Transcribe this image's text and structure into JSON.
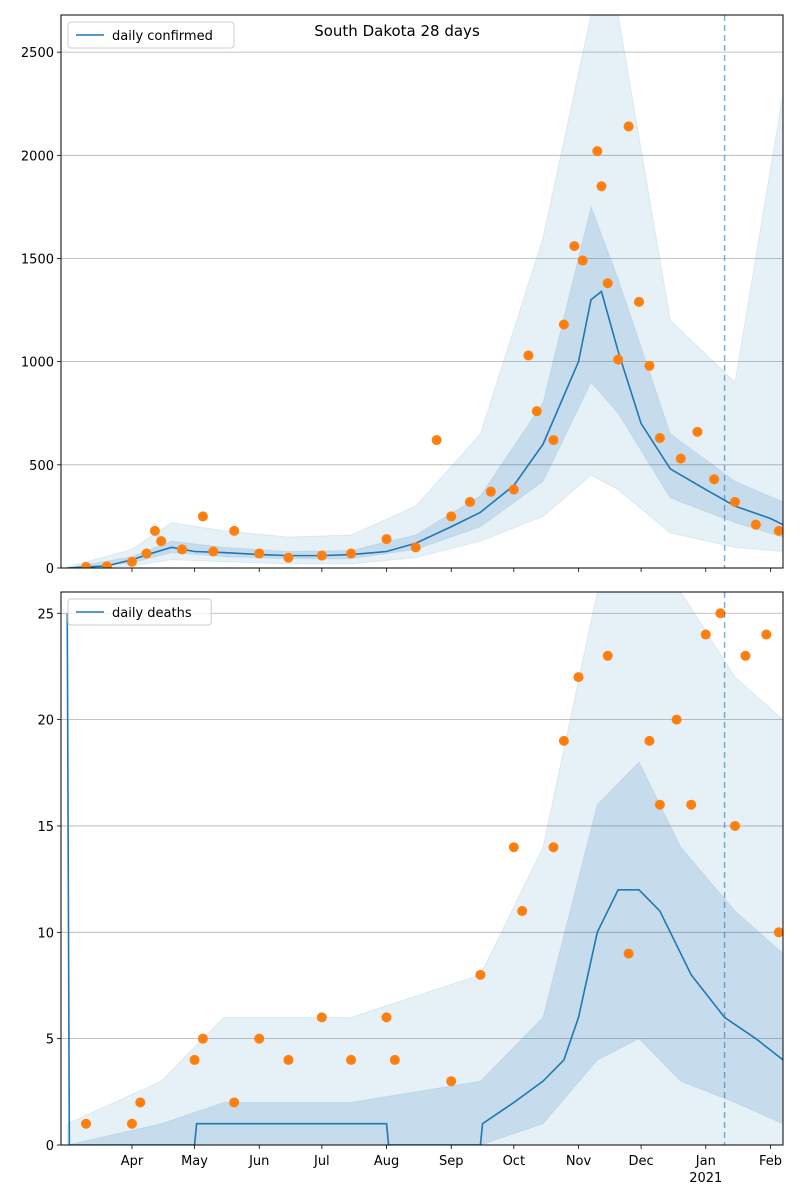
{
  "chart_data": [
    {
      "type": "line",
      "title": "South Dakota 28 days",
      "legend": {
        "label": "daily confirmed",
        "placement": "top-left"
      },
      "ylim": [
        0,
        2680
      ],
      "yticks": [
        0,
        500,
        1000,
        1500,
        2000,
        2500
      ],
      "grid": "y",
      "colors": {
        "line": "#1f77b4",
        "points": "#ff7f0e",
        "band": "#1f77b4"
      },
      "median": [
        {
          "x": "2020-03-01",
          "y": 0
        },
        {
          "x": "2020-03-20",
          "y": 10
        },
        {
          "x": "2020-04-01",
          "y": 40
        },
        {
          "x": "2020-04-10",
          "y": 70
        },
        {
          "x": "2020-04-20",
          "y": 100
        },
        {
          "x": "2020-05-01",
          "y": 80
        },
        {
          "x": "2020-05-15",
          "y": 75
        },
        {
          "x": "2020-06-01",
          "y": 65
        },
        {
          "x": "2020-06-15",
          "y": 60
        },
        {
          "x": "2020-07-01",
          "y": 60
        },
        {
          "x": "2020-07-15",
          "y": 65
        },
        {
          "x": "2020-08-01",
          "y": 80
        },
        {
          "x": "2020-08-15",
          "y": 120
        },
        {
          "x": "2020-09-01",
          "y": 200
        },
        {
          "x": "2020-09-15",
          "y": 270
        },
        {
          "x": "2020-10-01",
          "y": 400
        },
        {
          "x": "2020-10-15",
          "y": 600
        },
        {
          "x": "2020-11-01",
          "y": 1000
        },
        {
          "x": "2020-11-07",
          "y": 1300
        },
        {
          "x": "2020-11-12",
          "y": 1340
        },
        {
          "x": "2020-11-20",
          "y": 1050
        },
        {
          "x": "2020-12-01",
          "y": 700
        },
        {
          "x": "2020-12-15",
          "y": 480
        },
        {
          "x": "2021-01-01",
          "y": 380
        },
        {
          "x": "2021-01-15",
          "y": 300
        },
        {
          "x": "2021-02-01",
          "y": 240
        },
        {
          "x": "2021-02-07",
          "y": 210
        }
      ],
      "band_inner": [
        {
          "x": "2020-03-01",
          "lo": 0,
          "hi": 0
        },
        {
          "x": "2020-04-01",
          "lo": 25,
          "hi": 55
        },
        {
          "x": "2020-04-20",
          "lo": 75,
          "hi": 130
        },
        {
          "x": "2020-05-15",
          "lo": 55,
          "hi": 100
        },
        {
          "x": "2020-06-15",
          "lo": 45,
          "hi": 80
        },
        {
          "x": "2020-07-15",
          "lo": 45,
          "hi": 85
        },
        {
          "x": "2020-08-15",
          "lo": 90,
          "hi": 160
        },
        {
          "x": "2020-09-15",
          "lo": 200,
          "hi": 350
        },
        {
          "x": "2020-10-15",
          "lo": 420,
          "hi": 800
        },
        {
          "x": "2020-11-07",
          "lo": 900,
          "hi": 1750
        },
        {
          "x": "2020-11-20",
          "lo": 750,
          "hi": 1400
        },
        {
          "x": "2020-12-15",
          "lo": 340,
          "hi": 650
        },
        {
          "x": "2021-01-15",
          "lo": 220,
          "hi": 420
        },
        {
          "x": "2021-02-07",
          "lo": 150,
          "hi": 320
        }
      ],
      "band_outer": [
        {
          "x": "2020-03-01",
          "lo": 0,
          "hi": 5
        },
        {
          "x": "2020-04-01",
          "lo": 10,
          "hi": 90
        },
        {
          "x": "2020-04-20",
          "lo": 40,
          "hi": 220
        },
        {
          "x": "2020-05-15",
          "lo": 30,
          "hi": 180
        },
        {
          "x": "2020-06-15",
          "lo": 20,
          "hi": 150
        },
        {
          "x": "2020-07-15",
          "lo": 20,
          "hi": 160
        },
        {
          "x": "2020-08-15",
          "lo": 50,
          "hi": 300
        },
        {
          "x": "2020-09-15",
          "lo": 130,
          "hi": 650
        },
        {
          "x": "2020-10-15",
          "lo": 250,
          "hi": 1600
        },
        {
          "x": "2020-11-07",
          "lo": 450,
          "hi": 2680
        },
        {
          "x": "2020-11-20",
          "lo": 380,
          "hi": 2680
        },
        {
          "x": "2020-12-15",
          "lo": 170,
          "hi": 1200
        },
        {
          "x": "2021-01-15",
          "lo": 100,
          "hi": 900
        },
        {
          "x": "2021-02-07",
          "lo": 80,
          "hi": 2300
        }
      ],
      "observed": [
        {
          "x": "2020-03-10",
          "y": 5
        },
        {
          "x": "2020-03-20",
          "y": 8
        },
        {
          "x": "2020-04-01",
          "y": 30
        },
        {
          "x": "2020-04-08",
          "y": 70
        },
        {
          "x": "2020-04-12",
          "y": 180
        },
        {
          "x": "2020-04-15",
          "y": 130
        },
        {
          "x": "2020-04-25",
          "y": 90
        },
        {
          "x": "2020-05-05",
          "y": 250
        },
        {
          "x": "2020-05-10",
          "y": 80
        },
        {
          "x": "2020-05-20",
          "y": 180
        },
        {
          "x": "2020-06-01",
          "y": 70
        },
        {
          "x": "2020-06-15",
          "y": 50
        },
        {
          "x": "2020-07-01",
          "y": 60
        },
        {
          "x": "2020-07-15",
          "y": 70
        },
        {
          "x": "2020-08-01",
          "y": 140
        },
        {
          "x": "2020-08-15",
          "y": 100
        },
        {
          "x": "2020-08-25",
          "y": 620
        },
        {
          "x": "2020-09-01",
          "y": 250
        },
        {
          "x": "2020-09-10",
          "y": 320
        },
        {
          "x": "2020-09-20",
          "y": 370
        },
        {
          "x": "2020-10-01",
          "y": 380
        },
        {
          "x": "2020-10-08",
          "y": 1030
        },
        {
          "x": "2020-10-12",
          "y": 760
        },
        {
          "x": "2020-10-20",
          "y": 620
        },
        {
          "x": "2020-10-25",
          "y": 1180
        },
        {
          "x": "2020-10-30",
          "y": 1560
        },
        {
          "x": "2020-11-03",
          "y": 1490
        },
        {
          "x": "2020-11-10",
          "y": 2020
        },
        {
          "x": "2020-11-12",
          "y": 1850
        },
        {
          "x": "2020-11-15",
          "y": 1380
        },
        {
          "x": "2020-11-20",
          "y": 1010
        },
        {
          "x": "2020-11-25",
          "y": 2140
        },
        {
          "x": "2020-11-30",
          "y": 1290
        },
        {
          "x": "2020-12-05",
          "y": 980
        },
        {
          "x": "2020-12-10",
          "y": 630
        },
        {
          "x": "2020-12-20",
          "y": 530
        },
        {
          "x": "2020-12-28",
          "y": 660
        },
        {
          "x": "2021-01-05",
          "y": 430
        },
        {
          "x": "2021-01-15",
          "y": 320
        },
        {
          "x": "2021-01-25",
          "y": 210
        },
        {
          "x": "2021-02-05",
          "y": 180
        }
      ],
      "vline_date": "2021-01-10"
    },
    {
      "type": "line",
      "title": "",
      "legend": {
        "label": "daily deaths",
        "placement": "top-left"
      },
      "ylim": [
        0,
        26
      ],
      "yticks": [
        0,
        5,
        10,
        15,
        20,
        25
      ],
      "grid": "y",
      "colors": {
        "line": "#1f77b4",
        "points": "#ff7f0e",
        "band": "#1f77b4"
      },
      "median": [
        {
          "x": "2020-03-01",
          "y": 25
        },
        {
          "x": "2020-03-02",
          "y": 0
        },
        {
          "x": "2020-05-01",
          "y": 0
        },
        {
          "x": "2020-05-02",
          "y": 1
        },
        {
          "x": "2020-08-01",
          "y": 1
        },
        {
          "x": "2020-08-02",
          "y": 0
        },
        {
          "x": "2020-09-15",
          "y": 0
        },
        {
          "x": "2020-09-16",
          "y": 1
        },
        {
          "x": "2020-10-01",
          "y": 2
        },
        {
          "x": "2020-10-15",
          "y": 3
        },
        {
          "x": "2020-10-25",
          "y": 4
        },
        {
          "x": "2020-11-01",
          "y": 6
        },
        {
          "x": "2020-11-10",
          "y": 10
        },
        {
          "x": "2020-11-20",
          "y": 12
        },
        {
          "x": "2020-11-30",
          "y": 12
        },
        {
          "x": "2020-12-10",
          "y": 11
        },
        {
          "x": "2020-12-25",
          "y": 8
        },
        {
          "x": "2021-01-10",
          "y": 6
        },
        {
          "x": "2021-01-25",
          "y": 5
        },
        {
          "x": "2021-02-07",
          "y": 4
        }
      ],
      "band_inner": [
        {
          "x": "2020-03-01",
          "lo": 0,
          "hi": 0
        },
        {
          "x": "2020-04-15",
          "lo": 0,
          "hi": 1
        },
        {
          "x": "2020-05-15",
          "lo": 0,
          "hi": 2
        },
        {
          "x": "2020-07-15",
          "lo": 0,
          "hi": 2
        },
        {
          "x": "2020-09-15",
          "lo": 0,
          "hi": 3
        },
        {
          "x": "2020-10-15",
          "lo": 1,
          "hi": 6
        },
        {
          "x": "2020-11-10",
          "lo": 4,
          "hi": 16
        },
        {
          "x": "2020-11-30",
          "lo": 5,
          "hi": 18
        },
        {
          "x": "2020-12-20",
          "lo": 3,
          "hi": 14
        },
        {
          "x": "2021-01-15",
          "lo": 2,
          "hi": 11
        },
        {
          "x": "2021-02-07",
          "lo": 1,
          "hi": 9
        }
      ],
      "band_outer": [
        {
          "x": "2020-03-01",
          "lo": 0,
          "hi": 1
        },
        {
          "x": "2020-04-15",
          "lo": 0,
          "hi": 3
        },
        {
          "x": "2020-05-15",
          "lo": 0,
          "hi": 6
        },
        {
          "x": "2020-07-15",
          "lo": 0,
          "hi": 6
        },
        {
          "x": "2020-09-15",
          "lo": 0,
          "hi": 8
        },
        {
          "x": "2020-10-15",
          "lo": 0,
          "hi": 14
        },
        {
          "x": "2020-11-10",
          "lo": 0,
          "hi": 26
        },
        {
          "x": "2020-11-30",
          "lo": 0,
          "hi": 26
        },
        {
          "x": "2020-12-20",
          "lo": 0,
          "hi": 26
        },
        {
          "x": "2021-01-15",
          "lo": 0,
          "hi": 22
        },
        {
          "x": "2021-02-07",
          "lo": 0,
          "hi": 20
        }
      ],
      "observed": [
        {
          "x": "2020-03-10",
          "y": 1
        },
        {
          "x": "2020-04-01",
          "y": 1
        },
        {
          "x": "2020-04-05",
          "y": 2
        },
        {
          "x": "2020-05-01",
          "y": 4
        },
        {
          "x": "2020-05-05",
          "y": 5
        },
        {
          "x": "2020-05-20",
          "y": 2
        },
        {
          "x": "2020-06-01",
          "y": 5
        },
        {
          "x": "2020-06-15",
          "y": 4
        },
        {
          "x": "2020-07-01",
          "y": 6
        },
        {
          "x": "2020-07-15",
          "y": 4
        },
        {
          "x": "2020-08-01",
          "y": 6
        },
        {
          "x": "2020-08-05",
          "y": 4
        },
        {
          "x": "2020-09-01",
          "y": 3
        },
        {
          "x": "2020-09-15",
          "y": 8
        },
        {
          "x": "2020-10-01",
          "y": 14
        },
        {
          "x": "2020-10-05",
          "y": 11
        },
        {
          "x": "2020-10-20",
          "y": 14
        },
        {
          "x": "2020-10-25",
          "y": 19
        },
        {
          "x": "2020-11-01",
          "y": 22
        },
        {
          "x": "2020-11-15",
          "y": 23
        },
        {
          "x": "2020-11-25",
          "y": 9
        },
        {
          "x": "2020-12-05",
          "y": 19
        },
        {
          "x": "2020-12-10",
          "y": 16
        },
        {
          "x": "2020-12-18",
          "y": 20
        },
        {
          "x": "2020-12-25",
          "y": 16
        },
        {
          "x": "2021-01-01",
          "y": 24
        },
        {
          "x": "2021-01-08",
          "y": 25
        },
        {
          "x": "2021-01-15",
          "y": 15
        },
        {
          "x": "2021-01-20",
          "y": 23
        },
        {
          "x": "2021-01-30",
          "y": 24
        },
        {
          "x": "2021-02-05",
          "y": 10
        }
      ],
      "vline_date": "2021-01-10",
      "xaxis": {
        "range": [
          "2020-02-27",
          "2021-02-07"
        ],
        "ticks": [
          {
            "date": "2020-04-01",
            "label": "Apr"
          },
          {
            "date": "2020-05-01",
            "label": "May"
          },
          {
            "date": "2020-06-01",
            "label": "Jun"
          },
          {
            "date": "2020-07-01",
            "label": "Jul"
          },
          {
            "date": "2020-08-01",
            "label": "Aug"
          },
          {
            "date": "2020-09-01",
            "label": "Sep"
          },
          {
            "date": "2020-10-01",
            "label": "Oct"
          },
          {
            "date": "2020-11-01",
            "label": "Nov"
          },
          {
            "date": "2020-12-01",
            "label": "Dec"
          },
          {
            "date": "2021-01-01",
            "label": "Jan"
          },
          {
            "date": "2021-02-01",
            "label": "Feb"
          }
        ],
        "year_label": {
          "date": "2021-01-01",
          "label": "2021"
        }
      }
    }
  ]
}
